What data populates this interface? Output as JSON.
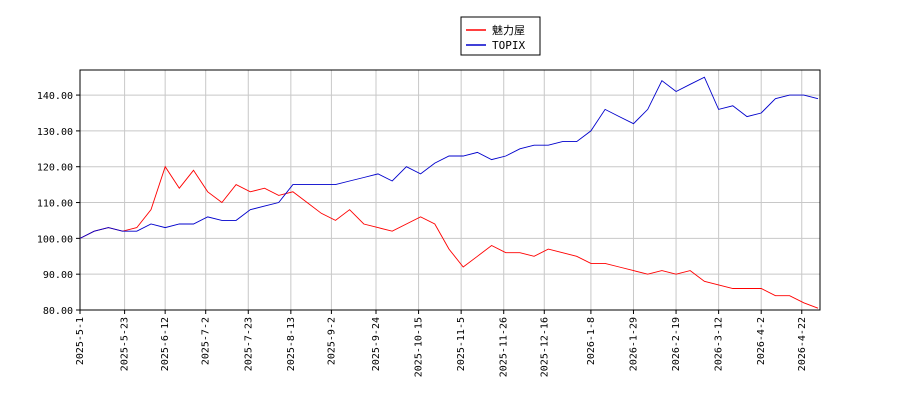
{
  "chart_data": {
    "type": "line",
    "x": [
      "2025-5-1",
      "2025-5-8",
      "2025-5-15",
      "2025-5-22",
      "2025-5-29",
      "2025-6-5",
      "2025-6-12",
      "2025-6-19",
      "2025-6-26",
      "2025-7-3",
      "2025-7-10",
      "2025-7-17",
      "2025-7-24",
      "2025-7-31",
      "2025-8-7",
      "2025-8-14",
      "2025-8-21",
      "2025-8-28",
      "2025-9-4",
      "2025-9-11",
      "2025-9-18",
      "2025-9-25",
      "2025-10-2",
      "2025-10-9",
      "2025-10-16",
      "2025-10-23",
      "2025-10-30",
      "2025-11-6",
      "2025-11-13",
      "2025-11-20",
      "2025-11-27",
      "2025-12-4",
      "2025-12-11",
      "2025-12-18",
      "2025-12-25",
      "2026-1-1",
      "2026-1-8",
      "2026-1-15",
      "2026-1-22",
      "2026-1-29",
      "2026-2-5",
      "2026-2-12",
      "2026-2-19",
      "2026-2-26",
      "2026-3-5",
      "2026-3-12",
      "2026-3-19",
      "2026-3-26",
      "2026-4-2",
      "2026-4-9",
      "2026-4-16",
      "2026-4-23",
      "2026-4-30"
    ],
    "series": [
      {
        "name": "魅力屋",
        "color": "#ff0000",
        "values": [
          100,
          102,
          103,
          102,
          103,
          108,
          120,
          114,
          119,
          113,
          110,
          115,
          113,
          114,
          112,
          113,
          110,
          107,
          105,
          108,
          104,
          103,
          102,
          104,
          106,
          104,
          97,
          92,
          95,
          98,
          96,
          96,
          95,
          97,
          96,
          95,
          93,
          93,
          92,
          91,
          90,
          91,
          90,
          91,
          88,
          87,
          86,
          86,
          86,
          84,
          84,
          82,
          80.5
        ]
      },
      {
        "name": "TOPIX",
        "color": "#0000cc",
        "values": [
          100,
          102,
          103,
          102,
          102,
          104,
          103,
          104,
          104,
          106,
          105,
          105,
          108,
          109,
          110,
          115,
          115,
          115,
          115,
          116,
          117,
          118,
          116,
          120,
          118,
          121,
          123,
          123,
          124,
          122,
          123,
          125,
          126,
          126,
          127,
          127,
          130,
          136,
          134,
          132,
          136,
          144,
          141,
          143,
          145,
          136,
          137,
          134,
          135,
          139,
          140,
          140,
          139
        ]
      }
    ],
    "xlim": [
      "2025-5-1",
      "2026-5-1"
    ],
    "xticks": [
      "2025-5-1",
      "2025-5-23",
      "2025-6-12",
      "2025-7-2",
      "2025-7-23",
      "2025-8-13",
      "2025-9-2",
      "2025-9-24",
      "2025-10-15",
      "2025-11-5",
      "2025-11-26",
      "2025-12-16",
      "2026-1-8",
      "2026-1-29",
      "2026-2-19",
      "2026-3-12",
      "2026-4-2",
      "2026-4-22"
    ],
    "ylim": [
      80,
      147
    ],
    "yticks": [
      {
        "value": 80,
        "label": "80.00"
      },
      {
        "value": 90,
        "label": "90.00"
      },
      {
        "value": 100,
        "label": "100.00"
      },
      {
        "value": 110,
        "label": "110.00"
      },
      {
        "value": 120,
        "label": "120.00"
      },
      {
        "value": 130,
        "label": "130.00"
      },
      {
        "value": 140,
        "label": "140.00"
      }
    ],
    "grid": true
  }
}
